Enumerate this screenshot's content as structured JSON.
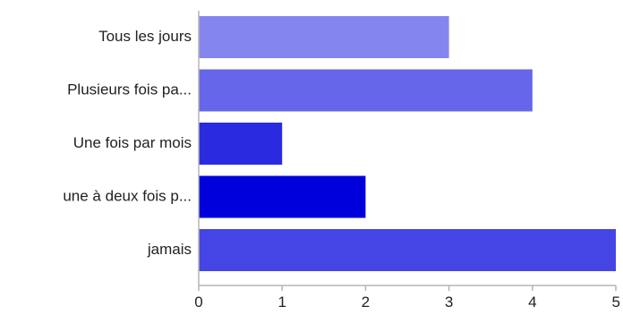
{
  "chart_data": {
    "type": "bar",
    "orientation": "horizontal",
    "categories": [
      "Tous les jours",
      "Plusieurs fois pa...",
      "Une fois par mois",
      "une à deux fois p...",
      "jamais"
    ],
    "values": [
      3,
      4,
      1,
      2,
      5
    ],
    "colors": [
      "#8585f0",
      "#6666ea",
      "#2a2ae0",
      "#0000dd",
      "#4545e6"
    ],
    "xlim": [
      0,
      5
    ],
    "xticks": [
      "0",
      "1",
      "2",
      "3",
      "4",
      "5"
    ],
    "grid": false,
    "legend": "none",
    "axis_color": "#b5b5b5"
  }
}
